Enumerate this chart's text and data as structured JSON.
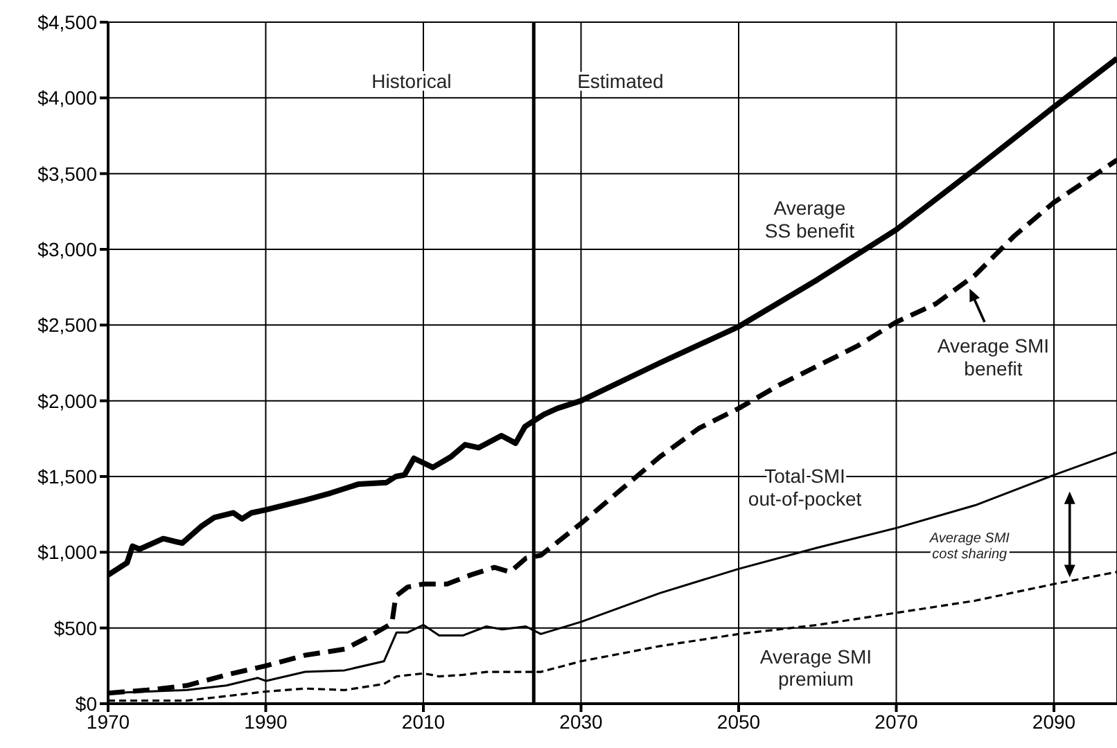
{
  "chart_data": {
    "type": "line",
    "xlim": [
      1970,
      2098
    ],
    "xticks": [
      1970,
      1990,
      2010,
      2030,
      2050,
      2070,
      2090
    ],
    "ylim": [
      0,
      4500
    ],
    "yticks": [
      {
        "value": 0,
        "label": "$0"
      },
      {
        "value": 500,
        "label": "$500"
      },
      {
        "value": 1000,
        "label": "$1,000"
      },
      {
        "value": 1500,
        "label": "$1,500"
      },
      {
        "value": 2000,
        "label": "$2,000"
      },
      {
        "value": 2500,
        "label": "$2,500"
      },
      {
        "value": 3000,
        "label": "$3,000"
      },
      {
        "value": 3500,
        "label": "$3,500"
      },
      {
        "value": 4000,
        "label": "$4,000"
      },
      {
        "value": 4500,
        "label": "$4,500"
      }
    ],
    "grid": true,
    "marker": "none",
    "ref_lines": [
      {
        "axis": "x",
        "value": 2024,
        "color": "#000000"
      }
    ],
    "annotations": [
      "Historical",
      "Estimated",
      "Average SMI cost sharing"
    ],
    "series": [
      {
        "name": "Average SS benefit",
        "color": "#000000",
        "line_style": "solid",
        "x": [
          1970,
          1972.4,
          1973.1,
          1974,
          1977,
          1979.4,
          1981.8,
          1983.5,
          1985.9,
          1987,
          1988.2,
          1990,
          1994.7,
          1998.2,
          2001.8,
          2005.3,
          2006.5,
          2007.6,
          2008.8,
          2011.2,
          2013.5,
          2015.3,
          2017,
          2019.9,
          2021.7,
          2022.9,
          2025.3,
          2027,
          2030,
          2040,
          2050,
          2060,
          2070,
          2080,
          2090,
          2098
        ],
        "values": [
          850,
          930,
          1040,
          1020,
          1090,
          1060,
          1170,
          1230,
          1260,
          1220,
          1260,
          1280,
          1340,
          1390,
          1450,
          1460,
          1500,
          1510,
          1620,
          1560,
          1630,
          1710,
          1690,
          1770,
          1720,
          1830,
          1910,
          1950,
          2000,
          2250,
          2490,
          2800,
          3130,
          3530,
          3940,
          4260
        ]
      },
      {
        "name": "Average SMI benefit",
        "color": "#000000",
        "line_style": "dashed",
        "x": [
          1970,
          1975,
          1980,
          1985,
          1990,
          1995,
          2000,
          2003,
          2006,
          2006.5,
          2008,
          2010,
          2013,
          2016,
          2019,
          2021,
          2023,
          2024.9,
          2030,
          2035,
          2040,
          2045,
          2050,
          2055,
          2060,
          2065,
          2070,
          2075,
          2080,
          2085,
          2090,
          2098
        ],
        "values": [
          70,
          90,
          120,
          190,
          250,
          320,
          360,
          440,
          530,
          710,
          770,
          790,
          790,
          850,
          900,
          870,
          960,
          980,
          1190,
          1410,
          1630,
          1820,
          1950,
          2100,
          2230,
          2360,
          2520,
          2640,
          2830,
          3090,
          3310,
          3590
        ]
      },
      {
        "name": "Total SMI out-of-pocket",
        "color": "#000000",
        "line_style": "solid",
        "x": [
          1970,
          1980,
          1985,
          1989,
          1990,
          1995,
          2000,
          2005,
          2006.6,
          2008,
          2010,
          2012,
          2015,
          2018,
          2020,
          2023,
          2024.9,
          2030,
          2040,
          2050,
          2060,
          2070,
          2080,
          2090,
          2098
        ],
        "values": [
          70,
          90,
          120,
          170,
          150,
          210,
          220,
          280,
          470,
          470,
          520,
          450,
          450,
          510,
          490,
          510,
          460,
          540,
          730,
          890,
          1030,
          1160,
          1310,
          1510,
          1660
        ]
      },
      {
        "name": "Average SMI premium",
        "color": "#000000",
        "line_style": "dotted",
        "x": [
          1970,
          1980,
          1985,
          1990,
          1995,
          2000,
          2005,
          2006.6,
          2010,
          2012,
          2015,
          2018,
          2023,
          2024.9,
          2030,
          2040,
          2050,
          2060,
          2070,
          2080,
          2090,
          2098
        ],
        "values": [
          20,
          20,
          50,
          80,
          100,
          90,
          130,
          180,
          200,
          180,
          190,
          210,
          210,
          210,
          280,
          380,
          460,
          520,
          600,
          680,
          790,
          870
        ]
      }
    ]
  }
}
